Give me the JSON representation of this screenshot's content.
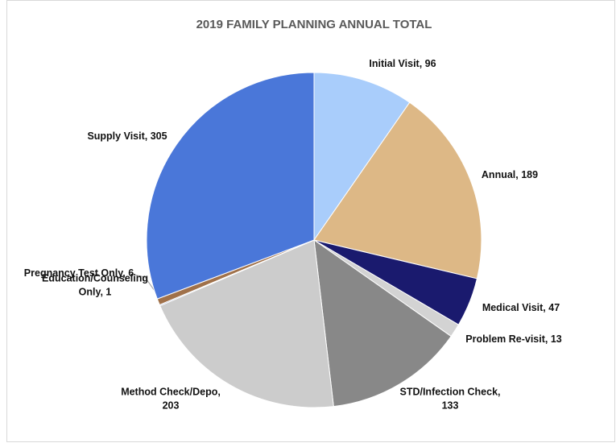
{
  "chart_data": {
    "type": "pie",
    "title": "2019 FAMILY PLANNING ANNUAL TOTAL",
    "values": [
      96,
      189,
      47,
      13,
      133,
      203,
      1,
      6,
      305
    ],
    "value_labels": [
      [
        "Initial Visit, 96"
      ],
      [
        "Annual, 189"
      ],
      [
        "Medical Visit, 47"
      ],
      [
        "Problem Re-visit, 13"
      ],
      [
        "STD/Infection Check,",
        "133"
      ],
      [
        "Method Check/Depo,",
        "203"
      ],
      [
        "Education/Counseling",
        "Only, 1"
      ],
      [
        "Pregnancy Test Only, 6"
      ],
      [
        "Supply Visit, 305"
      ]
    ],
    "colors": [
      "#a9cdfb",
      "#ddb886",
      "#1a1a6e",
      "#d3d3d3",
      "#888888",
      "#cccccc",
      "#3a5aa8",
      "#a0714a",
      "#4a77d9"
    ]
  }
}
